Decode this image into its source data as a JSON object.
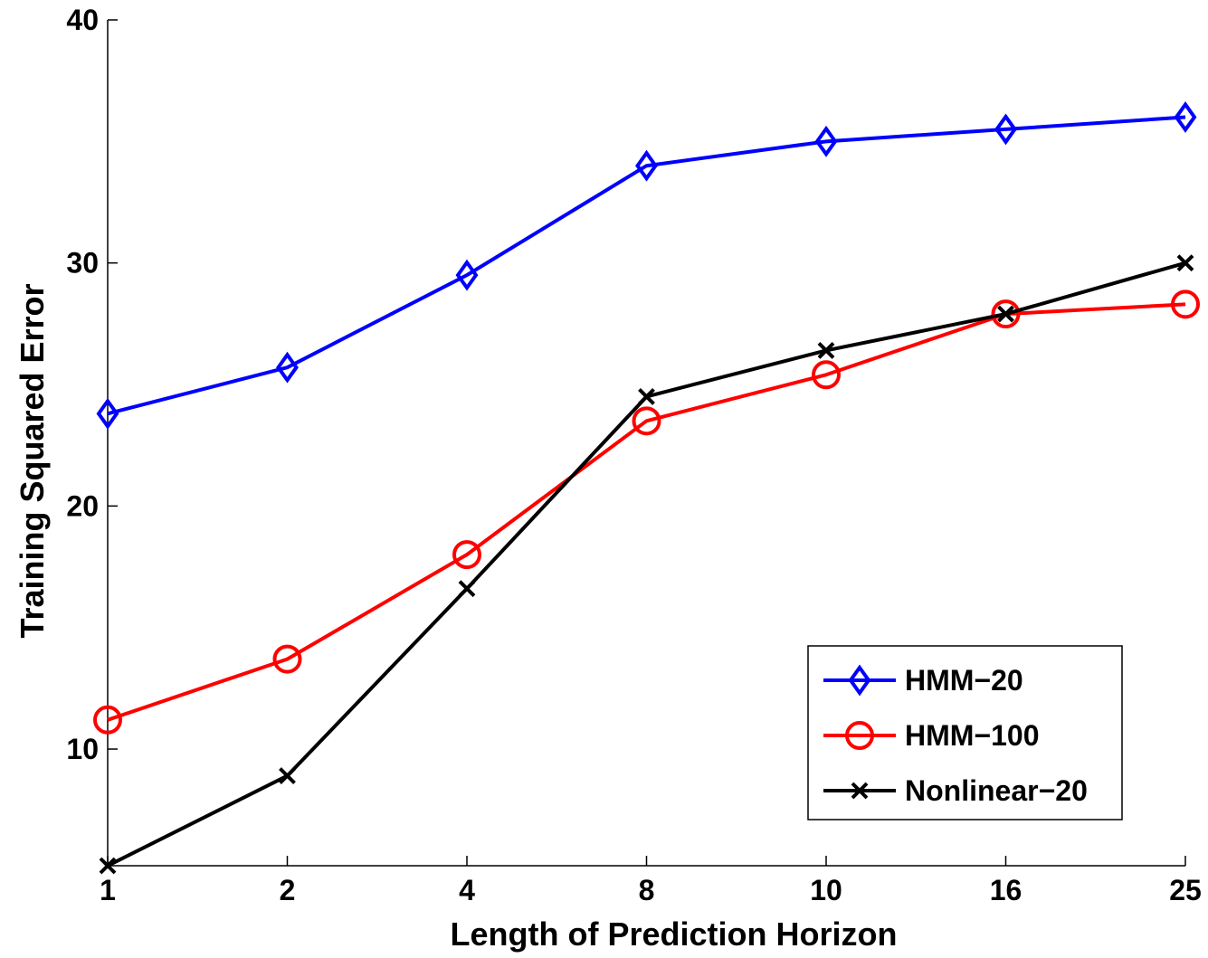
{
  "chart_data": {
    "type": "line",
    "title": "",
    "xlabel": "Length of Prediction Horizon",
    "ylabel": "Training Squared Error",
    "categories": [
      "1",
      "2",
      "4",
      "8",
      "10",
      "16",
      "25"
    ],
    "ylim": [
      5.2,
      40
    ],
    "yticks": [
      10,
      20,
      30,
      40
    ],
    "grid": false,
    "legend_position": "bottom-right",
    "series": [
      {
        "name": "HMM−20",
        "color": "#0000ff",
        "marker": "diamond",
        "values": [
          23.8,
          25.7,
          29.5,
          34.0,
          35.0,
          35.5,
          36.0
        ]
      },
      {
        "name": "HMM−100",
        "color": "#ff0000",
        "marker": "circle",
        "values": [
          11.2,
          13.7,
          18.0,
          23.5,
          25.4,
          27.9,
          28.3
        ]
      },
      {
        "name": "Nonlinear−20",
        "color": "#000000",
        "marker": "x",
        "values": [
          5.2,
          8.9,
          16.6,
          24.5,
          26.4,
          27.9,
          30.0
        ]
      }
    ]
  }
}
